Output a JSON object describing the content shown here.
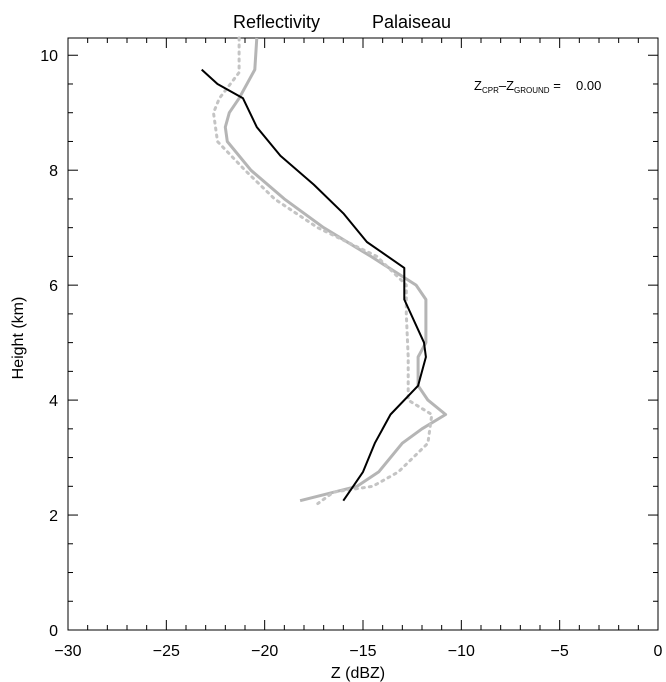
{
  "chart_data": {
    "type": "line",
    "title_left": "Reflectivity",
    "title_right": "Palaiseau",
    "xlabel": "Z (dBZ)",
    "ylabel": "Height (km)",
    "xlim": [
      -30,
      0
    ],
    "ylim": [
      0,
      10.3
    ],
    "xticks": [
      -30,
      -25,
      -20,
      -15,
      -10,
      -5,
      0
    ],
    "yticks": [
      0,
      2,
      4,
      6,
      8,
      10
    ],
    "grid": false,
    "annotation": {
      "z1": "Z",
      "sub1": "CPR",
      "minus": "–Z",
      "sub2": "GROUND",
      "equals": " =  ",
      "value": "0.00"
    },
    "series": [
      {
        "style": "solid-gray",
        "color": "#b5b5b5",
        "points": [
          [
            -20.4,
            10.3
          ],
          [
            -20.5,
            9.75
          ],
          [
            -21.3,
            9.25
          ],
          [
            -21.8,
            9.0
          ],
          [
            -22.0,
            8.75
          ],
          [
            -21.9,
            8.5
          ],
          [
            -20.7,
            8.0
          ],
          [
            -19.0,
            7.5
          ],
          [
            -17.0,
            7.0
          ],
          [
            -14.6,
            6.5
          ],
          [
            -12.3,
            6.0
          ],
          [
            -11.8,
            5.75
          ],
          [
            -11.8,
            5.0
          ],
          [
            -12.2,
            4.75
          ],
          [
            -12.2,
            4.25
          ],
          [
            -11.7,
            4.0
          ],
          [
            -10.8,
            3.75
          ],
          [
            -12.0,
            3.5
          ],
          [
            -13.0,
            3.25
          ],
          [
            -14.2,
            2.75
          ],
          [
            -15.3,
            2.5
          ],
          [
            -18.2,
            2.25
          ]
        ]
      },
      {
        "style": "dotted-gray",
        "color": "#c4c4c4",
        "points": [
          [
            -21.3,
            10.3
          ],
          [
            -21.3,
            9.7
          ],
          [
            -22.3,
            9.25
          ],
          [
            -22.6,
            9.0
          ],
          [
            -22.4,
            8.5
          ],
          [
            -21.0,
            8.0
          ],
          [
            -19.5,
            7.5
          ],
          [
            -17.3,
            7.0
          ],
          [
            -14.3,
            6.5
          ],
          [
            -12.8,
            6.0
          ],
          [
            -12.8,
            5.5
          ],
          [
            -12.7,
            4.75
          ],
          [
            -12.7,
            4.0
          ],
          [
            -11.5,
            3.75
          ],
          [
            -11.7,
            3.25
          ],
          [
            -13.2,
            2.75
          ],
          [
            -14.5,
            2.5
          ],
          [
            -16.5,
            2.4
          ],
          [
            -17.3,
            2.2
          ]
        ]
      },
      {
        "style": "solid-black",
        "color": "#000000",
        "points": [
          [
            -23.2,
            9.75
          ],
          [
            -22.4,
            9.5
          ],
          [
            -21.1,
            9.25
          ],
          [
            -20.4,
            8.75
          ],
          [
            -19.2,
            8.25
          ],
          [
            -17.5,
            7.75
          ],
          [
            -16.0,
            7.25
          ],
          [
            -14.8,
            6.75
          ],
          [
            -12.9,
            6.3
          ],
          [
            -12.9,
            5.75
          ],
          [
            -11.9,
            5.0
          ],
          [
            -11.8,
            4.75
          ],
          [
            -12.2,
            4.25
          ],
          [
            -13.6,
            3.75
          ],
          [
            -14.4,
            3.25
          ],
          [
            -15.0,
            2.75
          ],
          [
            -15.5,
            2.5
          ],
          [
            -16.0,
            2.25
          ]
        ]
      }
    ]
  }
}
